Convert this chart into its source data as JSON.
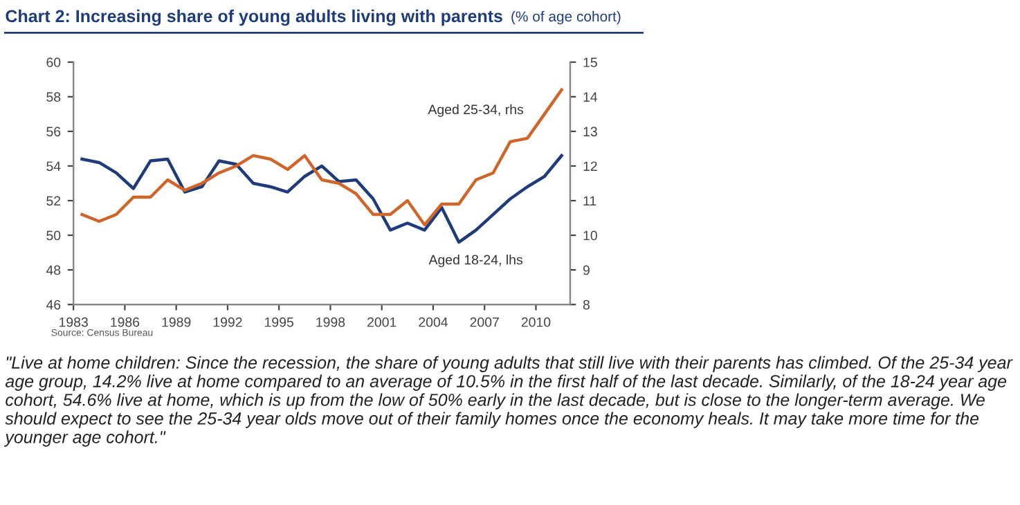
{
  "chart_data": {
    "type": "line",
    "title": "Chart 2: Increasing share of young adults living with parents",
    "subtitle": "(% of age cohort)",
    "x": [
      1983.5,
      1984.5,
      1985.5,
      1986.5,
      1987.5,
      1988.5,
      1989.5,
      1990.5,
      1991.5,
      1992.5,
      1993.5,
      1994.5,
      1995.5,
      1996.5,
      1997.5,
      1998.5,
      1999.5,
      2000.5,
      2001.5,
      2002.5,
      2003.5,
      2004.5,
      2005.5,
      2006.5,
      2007.5,
      2008.5,
      2009.5,
      2010.5,
      2011.5
    ],
    "series": [
      {
        "color": "#1f3c7a",
        "values": [
          54.4,
          54.2,
          53.6,
          52.7,
          54.3,
          54.4,
          52.5,
          52.8,
          54.3,
          54.1,
          53.0,
          52.8,
          52.5,
          53.4,
          54.0,
          53.1,
          53.2,
          52.1,
          50.3,
          50.7,
          50.3,
          51.6,
          49.6,
          50.3,
          51.2,
          52.1,
          52.8,
          53.4,
          54.6
        ]
      },
      {
        "color": "#d0652a",
        "axis": "y2",
        "values": [
          10.6,
          10.4,
          10.6,
          11.1,
          11.1,
          11.6,
          11.3,
          11.5,
          11.8,
          12.0,
          12.3,
          12.2,
          11.9,
          12.3,
          11.6,
          11.5,
          11.2,
          10.6,
          10.6,
          11.0,
          10.3,
          10.9,
          10.9,
          11.6,
          11.8,
          12.7,
          12.8,
          13.5,
          14.2
        ]
      }
    ],
    "xlim": [
      1983,
      2012
    ],
    "xticks": [
      1983,
      1986,
      1989,
      1992,
      1995,
      1998,
      2001,
      2004,
      2007,
      2010
    ],
    "ylim": [
      46,
      60
    ],
    "yticks": [
      46,
      48,
      50,
      52,
      54,
      56,
      58,
      60
    ],
    "y2lim": [
      8,
      15
    ],
    "y2ticks": [
      8,
      9,
      10,
      11,
      12,
      13,
      14,
      15
    ],
    "grid": false,
    "legend": false,
    "annotations": [
      "Aged 25-34, rhs",
      "Aged 18-24, lhs",
      "Source: Census Bureau",
      "\"Live at home children: Since the recession, the share of young adults that still live with their parents has climbed. Of the 25-34 year age group, 14.2% live at home compared to an average of 10.5% in the first half of the last decade. Similarly, of the 18-24 year age cohort, 54.6% live at home, which is up from the low of 50% early in the last decade, but is close to the longer-term average. We should expect to see the 25-34 year olds move out of their family homes once the economy heals. It may take more time for the younger age cohort.\""
    ]
  }
}
